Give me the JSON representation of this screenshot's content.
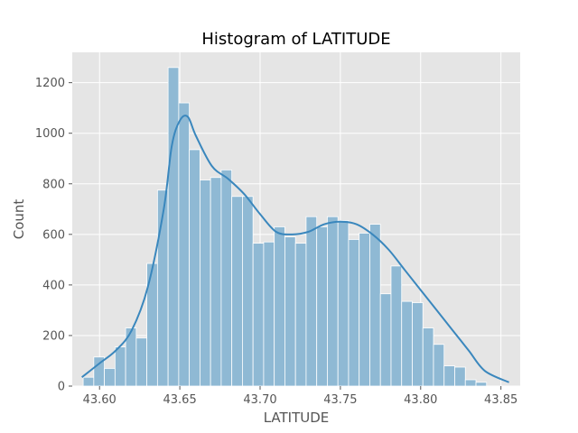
{
  "chart_data": {
    "type": "bar",
    "title": "Histogram of LATITUDE",
    "xlabel": "LATITUDE",
    "ylabel": "Count",
    "xlim": [
      43.583,
      43.862
    ],
    "ylim": [
      0,
      1320
    ],
    "xticks": [
      "43.60",
      "43.65",
      "43.70",
      "43.75",
      "43.80",
      "43.85"
    ],
    "xtick_values": [
      43.6,
      43.65,
      43.7,
      43.75,
      43.8,
      43.85
    ],
    "yticks": [
      "0",
      "200",
      "400",
      "600",
      "800",
      "1000",
      "1200"
    ],
    "ytick_values": [
      0,
      200,
      400,
      600,
      800,
      1000,
      1200
    ],
    "grid": true,
    "bin_start": 43.5898,
    "bin_width": 0.006612,
    "values": [
      35,
      115,
      70,
      155,
      230,
      190,
      485,
      775,
      1260,
      1120,
      935,
      815,
      825,
      855,
      750,
      750,
      565,
      570,
      630,
      590,
      565,
      670,
      630,
      670,
      655,
      580,
      605,
      640,
      365,
      475,
      335,
      330,
      230,
      165,
      80,
      75,
      25,
      15
    ],
    "kde": {
      "x": [
        43.589,
        43.6,
        43.61,
        43.62,
        43.63,
        43.64,
        43.645,
        43.65,
        43.655,
        43.66,
        43.67,
        43.68,
        43.69,
        43.7,
        43.71,
        43.72,
        43.73,
        43.74,
        43.75,
        43.76,
        43.77,
        43.78,
        43.79,
        43.8,
        43.81,
        43.82,
        43.83,
        43.84,
        43.855
      ],
      "y": [
        35,
        90,
        140,
        220,
        390,
        700,
        950,
        1050,
        1065,
        990,
        870,
        820,
        760,
        680,
        610,
        600,
        610,
        640,
        650,
        640,
        600,
        540,
        460,
        380,
        300,
        220,
        140,
        60,
        15
      ]
    },
    "colors": {
      "bar_fill": "#8fb9d4",
      "bar_edge": "#ffffff",
      "kde_line": "#3a87bd",
      "background": "#e5e5e5",
      "grid": "#ffffff"
    }
  }
}
